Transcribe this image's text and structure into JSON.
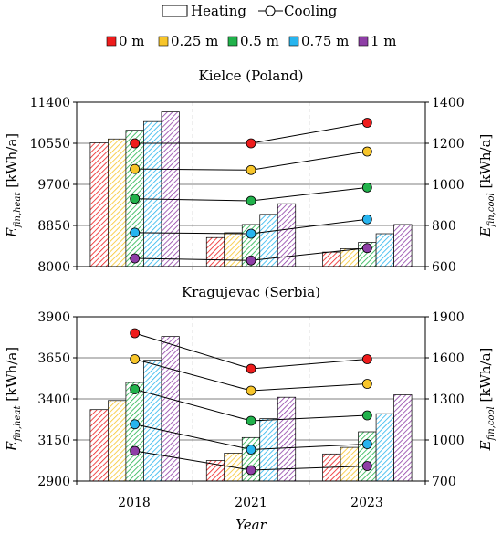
{
  "legend": {
    "type_items": [
      {
        "label": "Heating",
        "kind": "bar"
      },
      {
        "label": "Cooling",
        "kind": "line-marker"
      }
    ],
    "depth_items": [
      {
        "label": "0 m",
        "color": "#ee1c1c"
      },
      {
        "label": "0.25 m",
        "color": "#f7c52a"
      },
      {
        "label": "0.5 m",
        "color": "#21b24b"
      },
      {
        "label": "0.75 m",
        "color": "#27b4ee"
      },
      {
        "label": "1 m",
        "color": "#8e3ea6"
      }
    ]
  },
  "x_axis": {
    "title": "Year",
    "categories": [
      "2018",
      "2021",
      "2023"
    ]
  },
  "chart_data": [
    {
      "type": "bar",
      "title": "Kielce (Poland)",
      "categories": [
        "2018",
        "2021",
        "2023"
      ],
      "ylabel_left": {
        "main": "E",
        "sub": "fin,heat",
        "unit": " [kWh/a]"
      },
      "ylabel_right": {
        "main": "E",
        "sub": "fin,cool",
        "unit": " [kWh/a]"
      },
      "ylim_left": [
        8000,
        11400
      ],
      "yticks_left": [
        "8000",
        "8850",
        "9700",
        "10550",
        "11400"
      ],
      "ylim_right": [
        600,
        1400
      ],
      "yticks_right": [
        "600",
        "800",
        "1000",
        "1200",
        "1400"
      ],
      "heating_series": [
        {
          "name": "0 m",
          "values": [
            10560,
            8600,
            8300
          ]
        },
        {
          "name": "0.25 m",
          "values": [
            10640,
            8700,
            8370
          ]
        },
        {
          "name": "0.5 m",
          "values": [
            10820,
            8870,
            8500
          ]
        },
        {
          "name": "0.75 m",
          "values": [
            11000,
            9080,
            8680
          ]
        },
        {
          "name": "1 m",
          "values": [
            11200,
            9300,
            8870
          ]
        }
      ],
      "cooling_series": [
        {
          "name": "0 m",
          "values": [
            1200,
            1200,
            1300
          ]
        },
        {
          "name": "0.25 m",
          "values": [
            1075,
            1070,
            1160
          ]
        },
        {
          "name": "0.5 m",
          "values": [
            930,
            920,
            985
          ]
        },
        {
          "name": "0.75 m",
          "values": [
            765,
            760,
            830
          ]
        },
        {
          "name": "1 m",
          "values": [
            640,
            630,
            690
          ]
        }
      ]
    },
    {
      "type": "bar",
      "title": "Kragujevac (Serbia)",
      "categories": [
        "2018",
        "2021",
        "2023"
      ],
      "ylabel_left": {
        "main": "E",
        "sub": "fin,heat",
        "unit": " [kWh/a]"
      },
      "ylabel_right": {
        "main": "E",
        "sub": "fin,cool",
        "unit": " [kWh/a]"
      },
      "ylim_left": [
        2900,
        3900
      ],
      "yticks_left": [
        "2900",
        "3150",
        "3400",
        "3650",
        "3900"
      ],
      "ylim_right": [
        700,
        1900
      ],
      "yticks_right": [
        "700",
        "1000",
        "1300",
        "1600",
        "1900"
      ],
      "heating_series": [
        {
          "name": "0 m",
          "values": [
            3335,
            3025,
            3065
          ]
        },
        {
          "name": "0.25 m",
          "values": [
            3390,
            3070,
            3105
          ]
        },
        {
          "name": "0.5 m",
          "values": [
            3500,
            3165,
            3200
          ]
        },
        {
          "name": "0.75 m",
          "values": [
            3635,
            3280,
            3310
          ]
        },
        {
          "name": "1 m",
          "values": [
            3780,
            3410,
            3425
          ]
        }
      ],
      "cooling_series": [
        {
          "name": "0 m",
          "values": [
            1780,
            1520,
            1590
          ]
        },
        {
          "name": "0.25 m",
          "values": [
            1590,
            1360,
            1410
          ]
        },
        {
          "name": "0.5 m",
          "values": [
            1370,
            1140,
            1180
          ]
        },
        {
          "name": "0.75 m",
          "values": [
            1115,
            930,
            970
          ]
        },
        {
          "name": "1 m",
          "values": [
            920,
            780,
            810
          ]
        }
      ]
    }
  ]
}
